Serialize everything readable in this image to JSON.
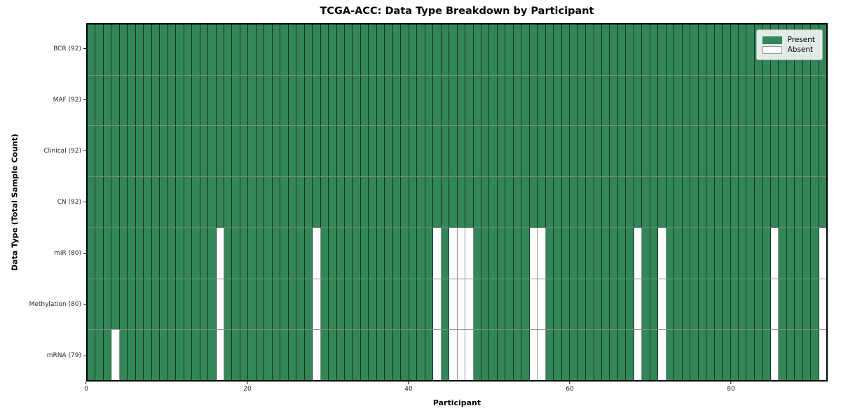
{
  "chart_data": {
    "type": "heatmap",
    "title": "TCGA-ACC: Data Type Breakdown by Participant",
    "xlabel": "Participant",
    "ylabel": "Data Type (Total Sample Count)",
    "n_participants": 92,
    "x_range": [
      0,
      92
    ],
    "x_ticks": [
      0,
      20,
      40,
      60,
      80
    ],
    "grid": "cell-borders",
    "legend": {
      "position": "upper-right",
      "entries": [
        {
          "label": "Present",
          "color": "#338657"
        },
        {
          "label": "Absent",
          "color": "#ffffff"
        }
      ]
    },
    "colors": {
      "present": "#338657",
      "absent": "#ffffff",
      "frame": "#000000",
      "absent_cell_border": "#8f8f8f"
    },
    "rows": [
      {
        "label": "BCR (92)",
        "data_type": "BCR",
        "present_count": 92,
        "absent_participants": []
      },
      {
        "label": "MAF (92)",
        "data_type": "MAF",
        "present_count": 92,
        "absent_participants": []
      },
      {
        "label": "Clinical (92)",
        "data_type": "Clinical",
        "present_count": 92,
        "absent_participants": []
      },
      {
        "label": "CN (92)",
        "data_type": "CN",
        "present_count": 92,
        "absent_participants": []
      },
      {
        "label": "miR (80)",
        "data_type": "miR",
        "present_count": 80,
        "absent_participants": [
          16,
          28,
          43,
          45,
          46,
          47,
          55,
          56,
          68,
          71,
          85,
          91
        ]
      },
      {
        "label": "Methylation (80)",
        "data_type": "Methylation",
        "present_count": 80,
        "absent_participants": [
          16,
          28,
          43,
          45,
          46,
          47,
          55,
          56,
          68,
          71,
          85,
          91
        ]
      },
      {
        "label": "mRNA (79)",
        "data_type": "mRNA",
        "present_count": 79,
        "absent_participants": [
          3,
          16,
          28,
          43,
          45,
          46,
          47,
          55,
          56,
          68,
          71,
          85,
          91
        ]
      }
    ]
  }
}
